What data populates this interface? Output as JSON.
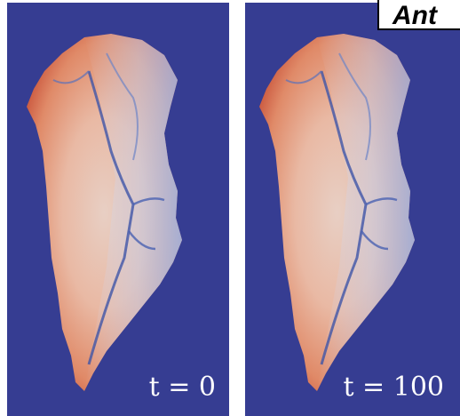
{
  "header": {
    "title": "Ant"
  },
  "panels": [
    {
      "label": "t = 0"
    },
    {
      "label": "t = 100"
    }
  ]
}
